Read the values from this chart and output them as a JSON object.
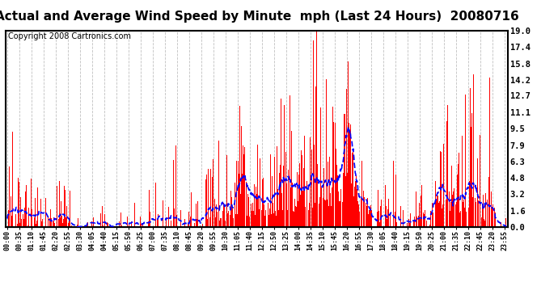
{
  "title": "Actual and Average Wind Speed by Minute  mph (Last 24 Hours)  20080716",
  "copyright": "Copyright 2008 Cartronics.com",
  "yticks": [
    0.0,
    1.6,
    3.2,
    4.8,
    6.3,
    7.9,
    9.5,
    11.1,
    12.7,
    14.2,
    15.8,
    17.4,
    19.0
  ],
  "ymax": 19.0,
  "ymin": 0.0,
  "bar_color": "#FF0000",
  "line_color": "#0000FF",
  "background_color": "#FFFFFF",
  "grid_color": "#C0C0C0",
  "title_fontsize": 11,
  "copyright_fontsize": 7,
  "tick_interval": 35
}
